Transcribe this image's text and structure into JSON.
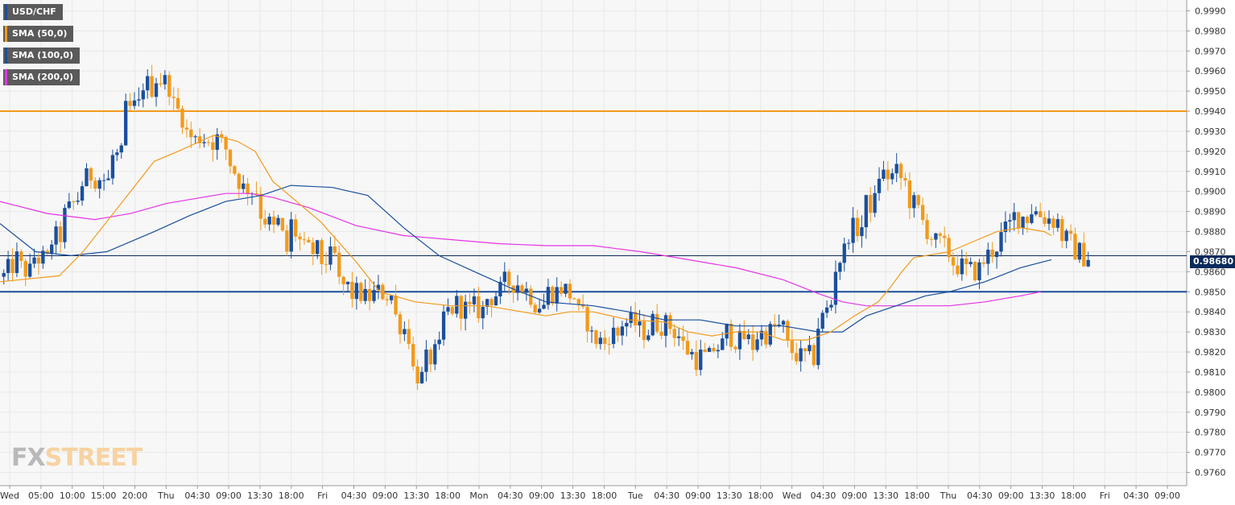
{
  "legend": [
    {
      "label": "USD/CHF",
      "color": "#1a4f9c"
    },
    {
      "label": "SMA (50,0)",
      "color": "#f29a1c"
    },
    {
      "label": "SMA (100,0)",
      "color": "#1a4f9c"
    },
    {
      "label": "SMA (200,0)",
      "color": "#e633e6"
    }
  ],
  "watermark": {
    "part1": "FX",
    "part2": "STREET"
  },
  "current_price_label": "0.98680",
  "colors": {
    "bull": "#1a4f9c",
    "bear": "#f29a1c",
    "resistance": "#f29a1c",
    "support": "#1a4f9c",
    "price_line": "#0b2a5b"
  },
  "chart_data": {
    "type": "candlestick",
    "title": "",
    "symbol": "USD/CHF",
    "ylim": [
      0.9755,
      0.9995
    ],
    "y_ticks": [
      0.999,
      0.998,
      0.997,
      0.996,
      0.995,
      0.994,
      0.993,
      0.992,
      0.991,
      0.99,
      0.989,
      0.988,
      0.987,
      0.986,
      0.985,
      0.984,
      0.983,
      0.982,
      0.981,
      0.98,
      0.979,
      0.978,
      0.977,
      0.976
    ],
    "y_tick_labels": [
      "0.9990",
      "0.9980",
      "0.9970",
      "0.9960",
      "0.9950",
      "0.9940",
      "0.9930",
      "0.9920",
      "0.9910",
      "0.9900",
      "0.9890",
      "0.9880",
      "0.9870",
      "0.9860",
      "0.9850",
      "0.9840",
      "0.9830",
      "0.9820",
      "0.9810",
      "0.9800",
      "0.9790",
      "0.9780",
      "0.9770",
      "0.9760"
    ],
    "x_ticks": [
      "Wed",
      "05:00",
      "10:00",
      "15:00",
      "20:00",
      "Thu",
      "04:30",
      "09:00",
      "13:30",
      "18:00",
      "Fri",
      "04:30",
      "09:00",
      "13:30",
      "18:00",
      "Mon",
      "04:30",
      "09:00",
      "13:30",
      "18:00",
      "Tue",
      "04:30",
      "09:00",
      "13:30",
      "18:00",
      "Wed",
      "04:30",
      "09:00",
      "13:30",
      "18:00",
      "Thu",
      "04:30",
      "09:00",
      "13:30",
      "18:00",
      "Fri",
      "04:30",
      "09:00"
    ],
    "horizontal_levels": [
      {
        "price": 0.994,
        "color": "#f29a1c"
      },
      {
        "price": 0.985,
        "color": "#1a4f9c"
      }
    ],
    "last_price": 0.9868,
    "anchors": [
      [
        0.9855,
        0.988
      ],
      [
        0.986,
        0.9855
      ],
      [
        0.9865,
        0.9862
      ],
      [
        0.987,
        0.9868
      ],
      [
        0.988,
        0.989
      ],
      [
        0.9895,
        0.9905
      ],
      [
        0.991,
        0.9915
      ],
      [
        0.9905,
        0.9895
      ],
      [
        0.993,
        0.994
      ],
      [
        0.995,
        0.9945
      ],
      [
        0.996,
        0.9958
      ],
      [
        0.9955,
        0.9948
      ],
      [
        0.9935,
        0.9925
      ],
      [
        0.9925,
        0.9922
      ],
      [
        0.993,
        0.9928
      ],
      [
        0.9925,
        0.991
      ],
      [
        0.9905,
        0.989
      ],
      [
        0.99,
        0.991
      ],
      [
        0.988,
        0.985
      ],
      [
        0.99,
        0.988
      ],
      [
        0.987,
        0.986
      ],
      [
        0.987,
        0.988
      ],
      [
        0.986,
        0.9855
      ],
      [
        0.985,
        0.9848
      ],
      [
        0.9848,
        0.985
      ],
      [
        0.9845,
        0.985
      ],
      [
        0.9855,
        0.9845
      ],
      [
        0.982,
        0.981
      ],
      [
        0.9805,
        0.98
      ],
      [
        0.9825,
        0.9842
      ],
      [
        0.9848,
        0.9845
      ],
      [
        0.984,
        0.9835
      ],
      [
        0.9845,
        0.9845
      ],
      [
        0.9848,
        0.9855
      ],
      [
        0.986,
        0.9855
      ],
      [
        0.985,
        0.9842
      ],
      [
        0.984,
        0.9845
      ],
      [
        0.986,
        0.9855
      ],
      [
        0.9845,
        0.9838
      ],
      [
        0.9835,
        0.983
      ],
      [
        0.982,
        0.9818
      ],
      [
        0.984,
        0.9838
      ],
      [
        0.983,
        0.983
      ],
      [
        0.983,
        0.9832
      ],
      [
        0.984,
        0.9835
      ],
      [
        0.983,
        0.9818
      ],
      [
        0.9818,
        0.9815
      ],
      [
        0.9818,
        0.9818
      ],
      [
        0.9825,
        0.983
      ],
      [
        0.9835,
        0.9818
      ],
      [
        0.9822,
        0.9825
      ],
      [
        0.9835,
        0.9835
      ],
      [
        0.983,
        0.9828
      ],
      [
        0.9815,
        0.9805
      ],
      [
        0.982,
        0.983
      ],
      [
        0.9845,
        0.986
      ],
      [
        0.9875,
        0.9885
      ],
      [
        0.9885,
        0.988
      ],
      [
        0.99,
        0.991
      ],
      [
        0.9918,
        0.9905
      ],
      [
        0.9905,
        0.99
      ],
      [
        0.989,
        0.9875
      ],
      [
        0.988,
        0.987
      ],
      [
        0.987,
        0.9865
      ],
      [
        0.986,
        0.9855
      ],
      [
        0.986,
        0.9868
      ],
      [
        0.987,
        0.988
      ],
      [
        0.988,
        0.989
      ],
      [
        0.9895,
        0.9885
      ],
      [
        0.989,
        0.989
      ],
      [
        0.9885,
        0.988
      ],
      [
        0.9875,
        0.9865
      ],
      [
        0.9868,
        0.9868
      ]
    ],
    "sma50": [
      [
        0.0,
        0.9855
      ],
      [
        0.05,
        0.9858
      ],
      [
        0.07,
        0.987
      ],
      [
        0.09,
        0.9885
      ],
      [
        0.11,
        0.99
      ],
      [
        0.13,
        0.9915
      ],
      [
        0.15,
        0.992
      ],
      [
        0.18,
        0.9928
      ],
      [
        0.2,
        0.9925
      ],
      [
        0.215,
        0.992
      ],
      [
        0.23,
        0.9905
      ],
      [
        0.27,
        0.9885
      ],
      [
        0.3,
        0.9865
      ],
      [
        0.32,
        0.985
      ],
      [
        0.35,
        0.9845
      ],
      [
        0.38,
        0.9843
      ],
      [
        0.41,
        0.9843
      ],
      [
        0.44,
        0.984
      ],
      [
        0.46,
        0.9838
      ],
      [
        0.48,
        0.984
      ],
      [
        0.5,
        0.984
      ],
      [
        0.53,
        0.9836
      ],
      [
        0.56,
        0.9835
      ],
      [
        0.58,
        0.983
      ],
      [
        0.6,
        0.9828
      ],
      [
        0.62,
        0.983
      ],
      [
        0.64,
        0.983
      ],
      [
        0.66,
        0.9826
      ],
      [
        0.68,
        0.9826
      ],
      [
        0.7,
        0.983
      ],
      [
        0.72,
        0.9838
      ],
      [
        0.74,
        0.9845
      ],
      [
        0.75,
        0.9852
      ],
      [
        0.76,
        0.986
      ],
      [
        0.77,
        0.9867
      ],
      [
        0.8,
        0.987
      ],
      [
        0.82,
        0.9875
      ],
      [
        0.84,
        0.988
      ],
      [
        0.86,
        0.9882
      ],
      [
        0.88,
        0.988
      ],
      [
        0.886,
        0.9878
      ]
    ],
    "sma100": [
      [
        0.0,
        0.9884
      ],
      [
        0.03,
        0.987
      ],
      [
        0.06,
        0.9868
      ],
      [
        0.09,
        0.987
      ],
      [
        0.13,
        0.988
      ],
      [
        0.16,
        0.9888
      ],
      [
        0.19,
        0.9895
      ],
      [
        0.22,
        0.9898
      ],
      [
        0.245,
        0.9903
      ],
      [
        0.28,
        0.9902
      ],
      [
        0.31,
        0.9898
      ],
      [
        0.34,
        0.9882
      ],
      [
        0.37,
        0.9868
      ],
      [
        0.4,
        0.986
      ],
      [
        0.43,
        0.9852
      ],
      [
        0.46,
        0.9845
      ],
      [
        0.5,
        0.9843
      ],
      [
        0.53,
        0.984
      ],
      [
        0.56,
        0.9836
      ],
      [
        0.59,
        0.9836
      ],
      [
        0.62,
        0.9833
      ],
      [
        0.66,
        0.9833
      ],
      [
        0.69,
        0.983
      ],
      [
        0.71,
        0.983
      ],
      [
        0.73,
        0.9838
      ],
      [
        0.75,
        0.9842
      ],
      [
        0.78,
        0.9848
      ],
      [
        0.8,
        0.985
      ],
      [
        0.83,
        0.9855
      ],
      [
        0.86,
        0.9862
      ],
      [
        0.886,
        0.9866
      ]
    ],
    "sma200": [
      [
        0.0,
        0.9895
      ],
      [
        0.04,
        0.9889
      ],
      [
        0.08,
        0.9886
      ],
      [
        0.11,
        0.9889
      ],
      [
        0.14,
        0.9894
      ],
      [
        0.17,
        0.9897
      ],
      [
        0.19,
        0.9899
      ],
      [
        0.21,
        0.9899
      ],
      [
        0.23,
        0.9897
      ],
      [
        0.26,
        0.9892
      ],
      [
        0.3,
        0.9883
      ],
      [
        0.34,
        0.9878
      ],
      [
        0.38,
        0.9876
      ],
      [
        0.42,
        0.9874
      ],
      [
        0.46,
        0.9873
      ],
      [
        0.5,
        0.9873
      ],
      [
        0.54,
        0.987
      ],
      [
        0.58,
        0.9866
      ],
      [
        0.62,
        0.9862
      ],
      [
        0.66,
        0.9856
      ],
      [
        0.69,
        0.9849
      ],
      [
        0.71,
        0.9845
      ],
      [
        0.73,
        0.9843
      ],
      [
        0.76,
        0.9843
      ],
      [
        0.8,
        0.9843
      ],
      [
        0.83,
        0.9845
      ],
      [
        0.86,
        0.9848
      ],
      [
        0.877,
        0.985
      ]
    ]
  }
}
